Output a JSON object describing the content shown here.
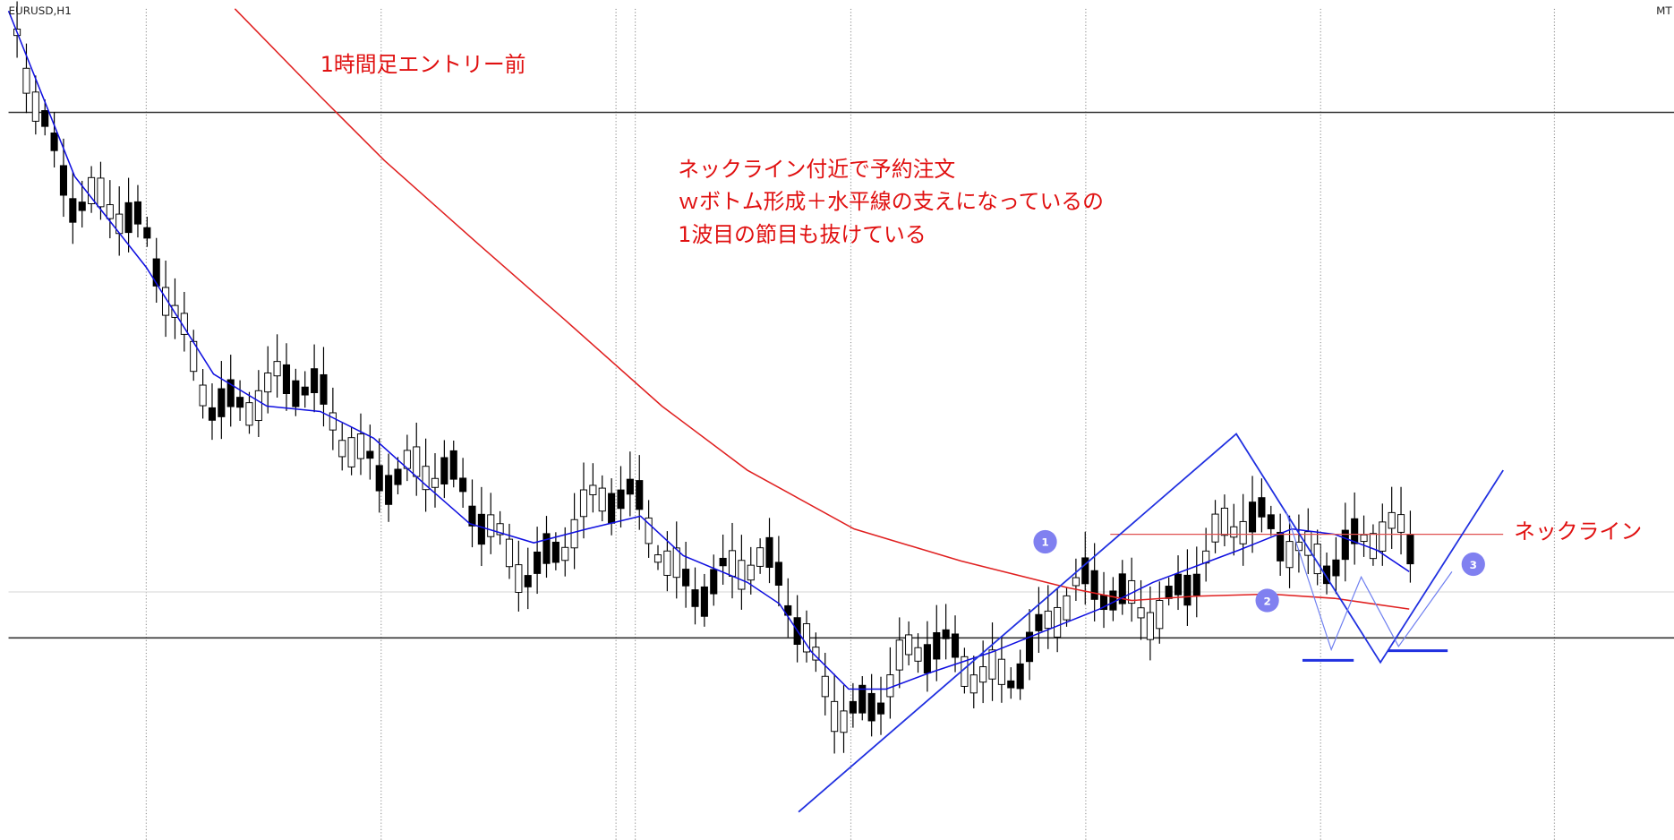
{
  "header": {
    "symbol": "EURUSD,H1",
    "platform": "MT"
  },
  "annotations": {
    "title": "1時間足エントリー前",
    "notes": [
      "ネックライン付近で予約注文",
      "ｗボトム形成＋水平線の支えになっているの",
      "1波目の節目も抜けている"
    ],
    "neckline": "ネックライン",
    "markers": [
      "1",
      "2",
      "3"
    ]
  }
}
